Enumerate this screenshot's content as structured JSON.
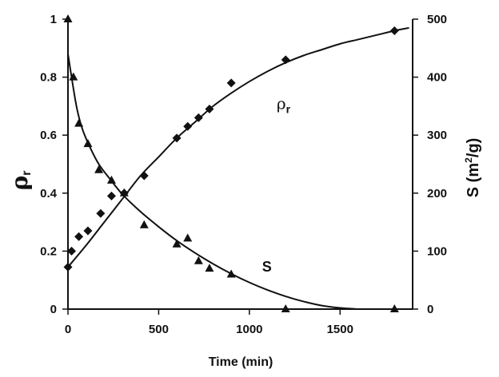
{
  "chart_data": {
    "type": "scatter",
    "title": "",
    "xlabel": "Time (min)",
    "ylabel_left": {
      "symbol": "ρ",
      "sub": "r"
    },
    "ylabel_right": {
      "pre": "S (m",
      "sup": "2",
      "post": "/g)"
    },
    "xlim": [
      0,
      1900
    ],
    "ylim_left": [
      0,
      1
    ],
    "ylim_right": [
      0,
      500
    ],
    "x_ticks": [
      0,
      500,
      1000,
      1500
    ],
    "y_left_ticks": [
      0,
      0.2,
      0.4,
      0.6,
      0.8,
      1
    ],
    "y_right_ticks": [
      0,
      100,
      200,
      300,
      400,
      500
    ],
    "grid": false,
    "legend": "none",
    "series": [
      {
        "name": "ρr",
        "axis": "left",
        "marker": "diamond",
        "points": [
          [
            0,
            0.145
          ],
          [
            20,
            0.2
          ],
          [
            60,
            0.25
          ],
          [
            110,
            0.27
          ],
          [
            180,
            0.33
          ],
          [
            240,
            0.39
          ],
          [
            310,
            0.4
          ],
          [
            420,
            0.46
          ],
          [
            600,
            0.59
          ],
          [
            660,
            0.63
          ],
          [
            720,
            0.66
          ],
          [
            780,
            0.69
          ],
          [
            900,
            0.78
          ],
          [
            1200,
            0.86
          ],
          [
            1800,
            0.96
          ]
        ],
        "fit": [
          [
            0,
            0.145
          ],
          [
            100,
            0.22
          ],
          [
            200,
            0.3
          ],
          [
            300,
            0.38
          ],
          [
            400,
            0.46
          ],
          [
            500,
            0.525
          ],
          [
            600,
            0.59
          ],
          [
            700,
            0.645
          ],
          [
            800,
            0.7
          ],
          [
            900,
            0.745
          ],
          [
            1000,
            0.785
          ],
          [
            1100,
            0.82
          ],
          [
            1200,
            0.85
          ],
          [
            1300,
            0.875
          ],
          [
            1400,
            0.895
          ],
          [
            1500,
            0.915
          ],
          [
            1600,
            0.93
          ],
          [
            1700,
            0.945
          ],
          [
            1800,
            0.96
          ],
          [
            1880,
            0.97
          ]
        ]
      },
      {
        "name": "S",
        "axis": "right",
        "marker": "triangle",
        "points": [
          [
            0,
            500
          ],
          [
            30,
            400
          ],
          [
            60,
            320
          ],
          [
            110,
            285
          ],
          [
            170,
            240
          ],
          [
            240,
            222
          ],
          [
            310,
            200
          ],
          [
            420,
            145
          ],
          [
            600,
            112
          ],
          [
            660,
            122
          ],
          [
            720,
            83
          ],
          [
            780,
            70
          ],
          [
            900,
            60
          ],
          [
            1200,
            0
          ],
          [
            1800,
            0
          ]
        ],
        "fit": [
          [
            0,
            440
          ],
          [
            25,
            390
          ],
          [
            50,
            345
          ],
          [
            80,
            310
          ],
          [
            120,
            280
          ],
          [
            170,
            250
          ],
          [
            230,
            225
          ],
          [
            300,
            198
          ],
          [
            400,
            168
          ],
          [
            500,
            142
          ],
          [
            600,
            118
          ],
          [
            700,
            97
          ],
          [
            800,
            78
          ],
          [
            900,
            61
          ],
          [
            1000,
            46
          ],
          [
            1100,
            33
          ],
          [
            1200,
            22
          ],
          [
            1300,
            13
          ],
          [
            1400,
            6
          ],
          [
            1500,
            2
          ],
          [
            1600,
            0
          ]
        ]
      }
    ],
    "annotations": [
      {
        "text": "ρ",
        "sub": "r",
        "x": 1150,
        "y_left": 0.69,
        "series": "ρr"
      },
      {
        "text": "S",
        "x": 1070,
        "y_left": 0.13,
        "series": "S"
      }
    ]
  }
}
